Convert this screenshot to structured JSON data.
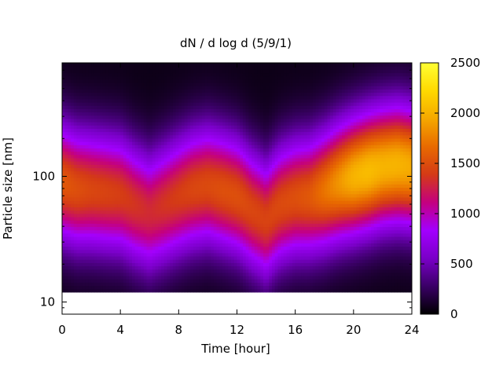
{
  "chart_data": {
    "type": "heatmap",
    "title": "dN / d log d (5/9/1)",
    "xlabel": "Time [hour]",
    "ylabel": "Particle size [nm]",
    "x_ticks": [
      0,
      4,
      8,
      12,
      16,
      20,
      24
    ],
    "x_tick_labels": [
      "0",
      "4",
      "8",
      "12",
      "16",
      "20",
      "24"
    ],
    "xlim": [
      0,
      24
    ],
    "y_scale": "log",
    "ylim": [
      8,
      800
    ],
    "y_ticks": [
      10,
      100
    ],
    "y_tick_labels": [
      "10",
      "100"
    ],
    "colorbar": {
      "range": [
        0,
        2500
      ],
      "ticks": [
        0,
        500,
        1000,
        1500,
        2000,
        2500
      ],
      "tick_labels": [
        "0",
        "500",
        "1000",
        "1500",
        "2000",
        "2500"
      ],
      "palette": [
        "#000000",
        "#3a0066",
        "#7a00c8",
        "#a300ff",
        "#c4007f",
        "#d43a16",
        "#e86a00",
        "#f5a800",
        "#ffd900",
        "#ffff33"
      ]
    },
    "size_range_nm": [
      12,
      800
    ],
    "hourly_mode_diameter_nm": [
      90,
      80,
      78,
      75,
      72,
      60,
      52,
      60,
      70,
      80,
      85,
      78,
      70,
      55,
      45,
      60,
      68,
      70,
      78,
      90,
      100,
      110,
      120,
      125,
      120
    ],
    "hourly_peak_concentration": [
      1500,
      1450,
      1400,
      1380,
      1350,
      1300,
      1250,
      1300,
      1350,
      1400,
      1420,
      1450,
      1450,
      1400,
      1380,
      1420,
      1450,
      1500,
      1650,
      1800,
      1950,
      2000,
      1950,
      1950,
      1900
    ]
  }
}
